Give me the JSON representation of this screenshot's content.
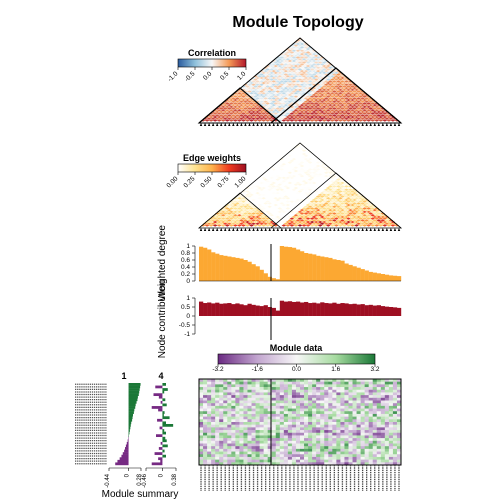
{
  "chart_data": [
    {
      "type": "heatmap",
      "panel": "correlation",
      "title": "Module Topology",
      "legend_title": "Correlation",
      "legend_ticks": [
        "-1.0",
        "-0.5",
        "0.0",
        "0.5",
        "1.0"
      ],
      "range": [
        -1,
        1
      ],
      "modules": [
        {
          "name": "1",
          "nodes": 20
        },
        {
          "name": "4",
          "nodes": 30
        }
      ]
    },
    {
      "type": "heatmap",
      "panel": "edge-weights",
      "legend_title": "Edge weights",
      "legend_ticks": [
        "0.00",
        "0.25",
        "0.50",
        "0.75",
        "1.00"
      ],
      "range": [
        0,
        1
      ]
    },
    {
      "type": "bar",
      "panel": "weighted-degree",
      "ylabel": "Weighted degree",
      "yticks": [
        "0",
        "0.2",
        "0.4",
        "0.6",
        "0.8",
        "1"
      ],
      "ylim": [
        0,
        1
      ],
      "color": "#FCA832",
      "values": [
        0.98,
        0.95,
        0.9,
        0.82,
        0.78,
        0.74,
        0.72,
        0.7,
        0.68,
        0.66,
        0.64,
        0.6,
        0.55,
        0.48,
        0.42,
        0.32,
        0.22,
        0.12,
        0.08,
        0.05,
        1.0,
        0.98,
        0.97,
        0.95,
        0.9,
        0.85,
        0.8,
        0.78,
        0.76,
        0.72,
        0.7,
        0.68,
        0.66,
        0.62,
        0.6,
        0.58,
        0.5,
        0.46,
        0.42,
        0.38,
        0.34,
        0.3,
        0.26,
        0.24,
        0.22,
        0.2,
        0.18,
        0.16,
        0.15,
        0.14
      ]
    },
    {
      "type": "bar",
      "panel": "node-contribution",
      "ylabel": "Node contribution",
      "yticks": [
        "-1",
        "-0.5",
        "0",
        "0.5",
        "1"
      ],
      "ylim": [
        -1,
        1
      ],
      "color": "#9E0F22",
      "values": [
        0.8,
        0.72,
        0.75,
        0.7,
        0.74,
        0.68,
        0.7,
        0.72,
        0.66,
        0.7,
        0.65,
        0.6,
        0.68,
        0.62,
        0.58,
        0.55,
        0.6,
        0.5,
        0.45,
        0.3,
        0.85,
        0.8,
        0.82,
        0.78,
        0.8,
        0.75,
        0.78,
        0.72,
        0.74,
        0.7,
        0.76,
        0.72,
        0.7,
        0.74,
        0.68,
        0.72,
        0.7,
        0.66,
        0.68,
        0.64,
        0.66,
        0.6,
        0.62,
        0.58,
        0.6,
        0.55,
        0.52,
        0.5,
        0.48,
        0.45
      ]
    },
    {
      "type": "heatmap",
      "panel": "module-data",
      "legend_title": "Module data",
      "legend_ticks": [
        "-3.2",
        "-1.6",
        "0.0",
        "1.6",
        "3.2"
      ],
      "range": [
        -3.2,
        3.2
      ],
      "rows": 32
    },
    {
      "type": "bar",
      "panel": "module-summary",
      "xlabel": "Module summary",
      "modules": [
        {
          "name": "1",
          "xticks": [
            "-0.44",
            "0",
            "0.28"
          ],
          "xlim": [
            -0.44,
            0.28
          ],
          "values": [
            0.27,
            0.26,
            0.25,
            0.24,
            0.23,
            0.21,
            0.2,
            0.18,
            0.16,
            0.15,
            0.13,
            0.12,
            0.1,
            0.09,
            0.08,
            0.06,
            0.05,
            0.04,
            0.03,
            0.02,
            0.01,
            -0.01,
            -0.02,
            -0.04,
            -0.06,
            -0.08,
            -0.1,
            -0.13,
            -0.16,
            -0.2,
            -0.25,
            -0.3
          ]
        },
        {
          "name": "4",
          "xticks": [
            "-0.46",
            "0",
            "0.38"
          ],
          "xlim": [
            -0.46,
            0.38
          ],
          "values": [
            0.1,
            -0.2,
            0.15,
            0.05,
            -0.25,
            -0.1,
            0.08,
            -0.05,
            0.12,
            -0.3,
            -0.12,
            0.06,
            0.04,
            0.2,
            -0.15,
            0.1,
            0.3,
            -0.08,
            0.05,
            0.1,
            -0.18,
            0.08,
            0.12,
            -0.05,
            0.15,
            -0.1,
            0.06,
            -0.22,
            0.1,
            -0.12,
            -0.06,
            -0.3
          ]
        }
      ]
    }
  ]
}
